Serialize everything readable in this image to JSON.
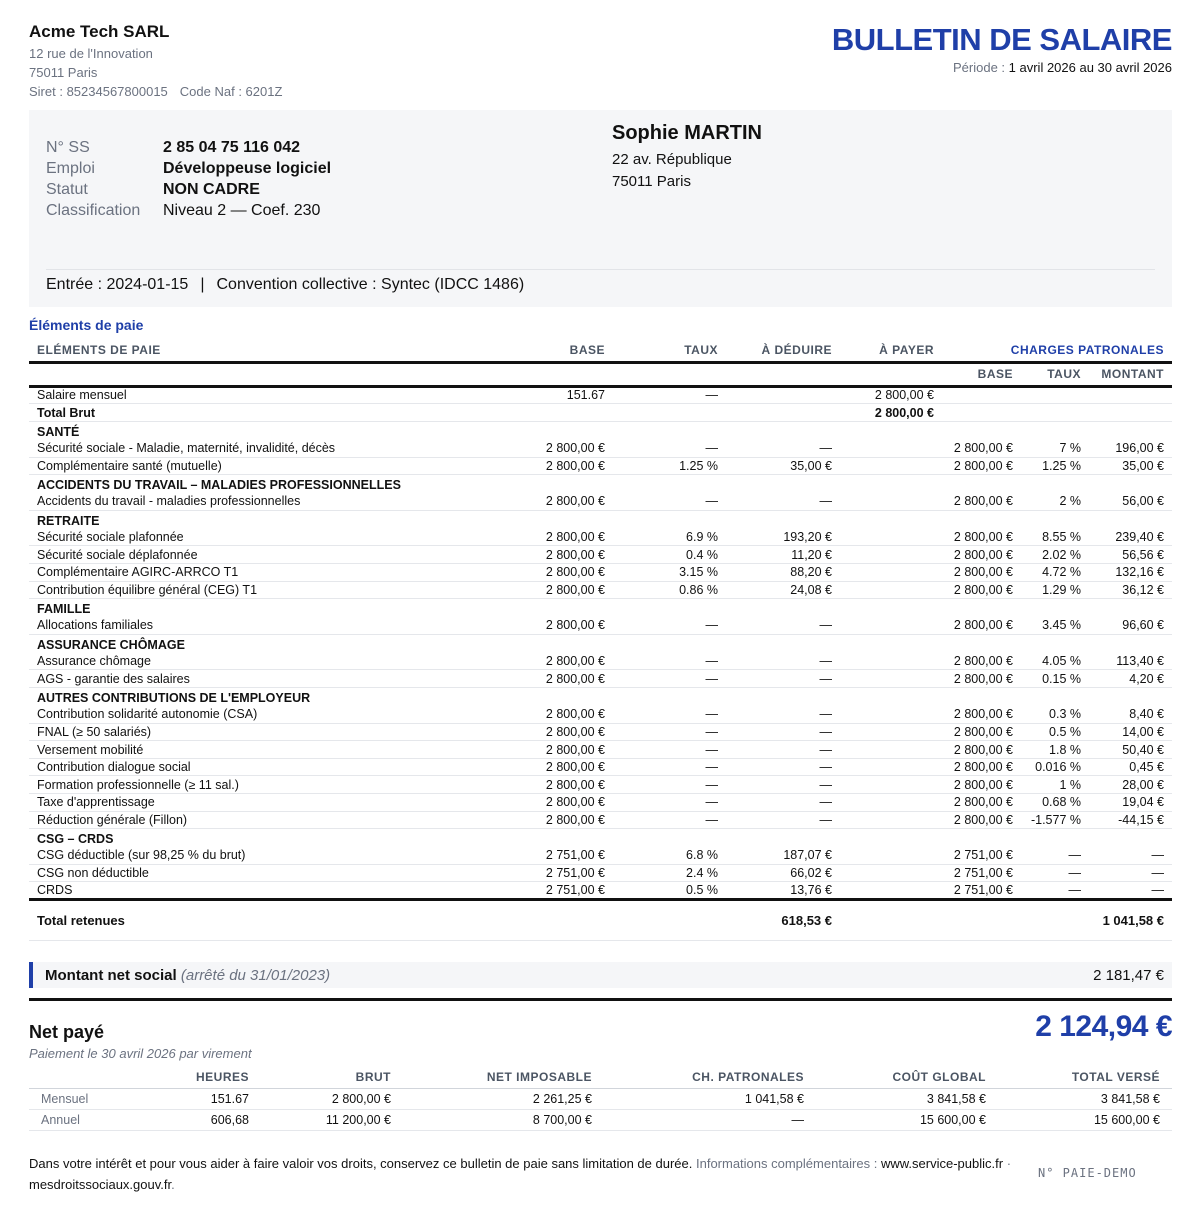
{
  "company": {
    "name": "Acme Tech SARL",
    "address1": "12 rue de l'Innovation",
    "address2": "75011 Paris",
    "siret": "Siret : 85234567800015",
    "naf": "Code Naf : 6201Z"
  },
  "document": {
    "title": "BULLETIN DE SALAIRE",
    "period_label": "Période :",
    "period_value": "1 avril 2026 au 30 avril 2026"
  },
  "employee": {
    "fields": [
      {
        "key": "N° SS",
        "value": "2 85 04 75 116 042"
      },
      {
        "key": "Emploi",
        "value": "Développeuse logiciel"
      },
      {
        "key": "Statut",
        "value": "NON CADRE"
      },
      {
        "key": "Classification",
        "value": "Niveau 2 — Coef. 230"
      }
    ],
    "name": "Sophie MARTIN",
    "address1": "22 av. République",
    "address2": "75011 Paris",
    "entry": "Entrée : 2024-01-15",
    "separator": "|",
    "convention": "Convention collective : Syntec (IDCC 1486)"
  },
  "section_title": "Éléments de paie",
  "table": {
    "headers": {
      "elements": "ELÉMENTS DE PAIE",
      "base": "BASE",
      "taux": "TAUX",
      "deduire": "À DÉDUIRE",
      "payer": "À PAYER",
      "charges": "CHARGES PATRONALES",
      "ch_base": "BASE",
      "ch_taux": "TAUX",
      "ch_montant": "MONTANT"
    },
    "salary": {
      "label": "Salaire mensuel",
      "base": "151.67",
      "taux": "—",
      "payer": "2 800,00 €"
    },
    "brut": {
      "label": "Total Brut",
      "payer": "2 800,00 €"
    },
    "sections": [
      {
        "title": "SANTÉ",
        "rows": [
          {
            "label": "Sécurité sociale - Maladie, maternité, invalidité, décès",
            "base": "2 800,00 €",
            "taux": "—",
            "deduire": "—",
            "ch_base": "2 800,00 €",
            "ch_taux": "7 %",
            "ch_montant": "196,00 €"
          },
          {
            "label": "Complémentaire santé (mutuelle)",
            "base": "2 800,00 €",
            "taux": "1.25 %",
            "deduire": "35,00 €",
            "ch_base": "2 800,00 €",
            "ch_taux": "1.25 %",
            "ch_montant": "35,00 €"
          }
        ]
      },
      {
        "title": "ACCIDENTS DU TRAVAIL – MALADIES PROFESSIONNELLES",
        "rows": [
          {
            "label": "Accidents du travail - maladies professionnelles",
            "base": "2 800,00 €",
            "taux": "—",
            "deduire": "—",
            "ch_base": "2 800,00 €",
            "ch_taux": "2 %",
            "ch_montant": "56,00 €"
          }
        ]
      },
      {
        "title": "RETRAITE",
        "rows": [
          {
            "label": "Sécurité sociale plafonnée",
            "base": "2 800,00 €",
            "taux": "6.9 %",
            "deduire": "193,20 €",
            "ch_base": "2 800,00 €",
            "ch_taux": "8.55 %",
            "ch_montant": "239,40 €"
          },
          {
            "label": "Sécurité sociale déplafonnée",
            "base": "2 800,00 €",
            "taux": "0.4 %",
            "deduire": "11,20 €",
            "ch_base": "2 800,00 €",
            "ch_taux": "2.02 %",
            "ch_montant": "56,56 €"
          },
          {
            "label": "Complémentaire AGIRC-ARRCO T1",
            "base": "2 800,00 €",
            "taux": "3.15 %",
            "deduire": "88,20 €",
            "ch_base": "2 800,00 €",
            "ch_taux": "4.72 %",
            "ch_montant": "132,16 €"
          },
          {
            "label": "Contribution équilibre général (CEG) T1",
            "base": "2 800,00 €",
            "taux": "0.86 %",
            "deduire": "24,08 €",
            "ch_base": "2 800,00 €",
            "ch_taux": "1.29 %",
            "ch_montant": "36,12 €"
          }
        ]
      },
      {
        "title": "FAMILLE",
        "rows": [
          {
            "label": "Allocations familiales",
            "base": "2 800,00 €",
            "taux": "—",
            "deduire": "—",
            "ch_base": "2 800,00 €",
            "ch_taux": "3.45 %",
            "ch_montant": "96,60 €"
          }
        ]
      },
      {
        "title": "ASSURANCE CHÔMAGE",
        "rows": [
          {
            "label": "Assurance chômage",
            "base": "2 800,00 €",
            "taux": "—",
            "deduire": "—",
            "ch_base": "2 800,00 €",
            "ch_taux": "4.05 %",
            "ch_montant": "113,40 €"
          },
          {
            "label": "AGS - garantie des salaires",
            "base": "2 800,00 €",
            "taux": "—",
            "deduire": "—",
            "ch_base": "2 800,00 €",
            "ch_taux": "0.15 %",
            "ch_montant": "4,20 €"
          }
        ]
      },
      {
        "title": "AUTRES CONTRIBUTIONS DE L'EMPLOYEUR",
        "rows": [
          {
            "label": "Contribution solidarité autonomie (CSA)",
            "base": "2 800,00 €",
            "taux": "—",
            "deduire": "—",
            "ch_base": "2 800,00 €",
            "ch_taux": "0.3 %",
            "ch_montant": "8,40 €"
          },
          {
            "label": "FNAL (≥ 50 salariés)",
            "base": "2 800,00 €",
            "taux": "—",
            "deduire": "—",
            "ch_base": "2 800,00 €",
            "ch_taux": "0.5 %",
            "ch_montant": "14,00 €"
          },
          {
            "label": "Versement mobilité",
            "base": "2 800,00 €",
            "taux": "—",
            "deduire": "—",
            "ch_base": "2 800,00 €",
            "ch_taux": "1.8 %",
            "ch_montant": "50,40 €"
          },
          {
            "label": "Contribution dialogue social",
            "base": "2 800,00 €",
            "taux": "—",
            "deduire": "—",
            "ch_base": "2 800,00 €",
            "ch_taux": "0.016 %",
            "ch_montant": "0,45 €"
          },
          {
            "label": "Formation professionnelle (≥ 11 sal.)",
            "base": "2 800,00 €",
            "taux": "—",
            "deduire": "—",
            "ch_base": "2 800,00 €",
            "ch_taux": "1 %",
            "ch_montant": "28,00 €"
          },
          {
            "label": "Taxe d'apprentissage",
            "base": "2 800,00 €",
            "taux": "—",
            "deduire": "—",
            "ch_base": "2 800,00 €",
            "ch_taux": "0.68 %",
            "ch_montant": "19,04 €"
          },
          {
            "label": "Réduction générale (Fillon)",
            "base": "2 800,00 €",
            "taux": "—",
            "deduire": "—",
            "ch_base": "2 800,00 €",
            "ch_taux": "-1.577 %",
            "ch_montant": "-44,15 €"
          }
        ]
      },
      {
        "title": "CSG – CRDS",
        "rows": [
          {
            "label": "CSG déductible (sur 98,25 % du brut)",
            "base": "2 751,00 €",
            "taux": "6.8 %",
            "deduire": "187,07 €",
            "ch_base": "2 751,00 €",
            "ch_taux": "—",
            "ch_montant": "—"
          },
          {
            "label": "CSG non déductible",
            "base": "2 751,00 €",
            "taux": "2.4 %",
            "deduire": "66,02 €",
            "ch_base": "2 751,00 €",
            "ch_taux": "—",
            "ch_montant": "—"
          },
          {
            "label": "CRDS",
            "base": "2 751,00 €",
            "taux": "0.5 %",
            "deduire": "13,76 €",
            "ch_base": "2 751,00 €",
            "ch_taux": "—",
            "ch_montant": "—"
          }
        ]
      }
    ],
    "total": {
      "label": "Total retenues",
      "deduire": "618,53 €",
      "charges": "1 041,58 €"
    }
  },
  "net_social": {
    "label": "Montant net social",
    "note": "(arrêté du 31/01/2023)",
    "value": "2 181,47 €"
  },
  "net_paye": {
    "label": "Net payé",
    "amount": "2 124,94 €",
    "payment": "Paiement le 30 avril 2026 par virement"
  },
  "summary": {
    "headers": [
      "",
      "HEURES",
      "BRUT",
      "NET IMPOSABLE",
      "CH. PATRONALES",
      "COÛT GLOBAL",
      "TOTAL VERSÉ"
    ],
    "rows": [
      [
        "Mensuel",
        "151.67",
        "2 800,00 €",
        "2 261,25 €",
        "1 041,58 €",
        "3 841,58 €",
        "3 841,58 €"
      ],
      [
        "Annuel",
        "606,68",
        "11 200,00 €",
        "8 700,00 €",
        "—",
        "15 600,00 €",
        "15 600,00 €"
      ]
    ]
  },
  "footer": {
    "text": "Dans votre intérêt et pour vous aider à faire valoir vos droits, conservez ce bulletin de paie sans limitation de durée.",
    "info": "Informations complémentaires :",
    "link1": "www.service-public.fr",
    "sep": "·",
    "link2": "mesdroitssociaux.gouv.fr",
    "end": ".",
    "stamp": "N° PAIE-DEMO"
  }
}
